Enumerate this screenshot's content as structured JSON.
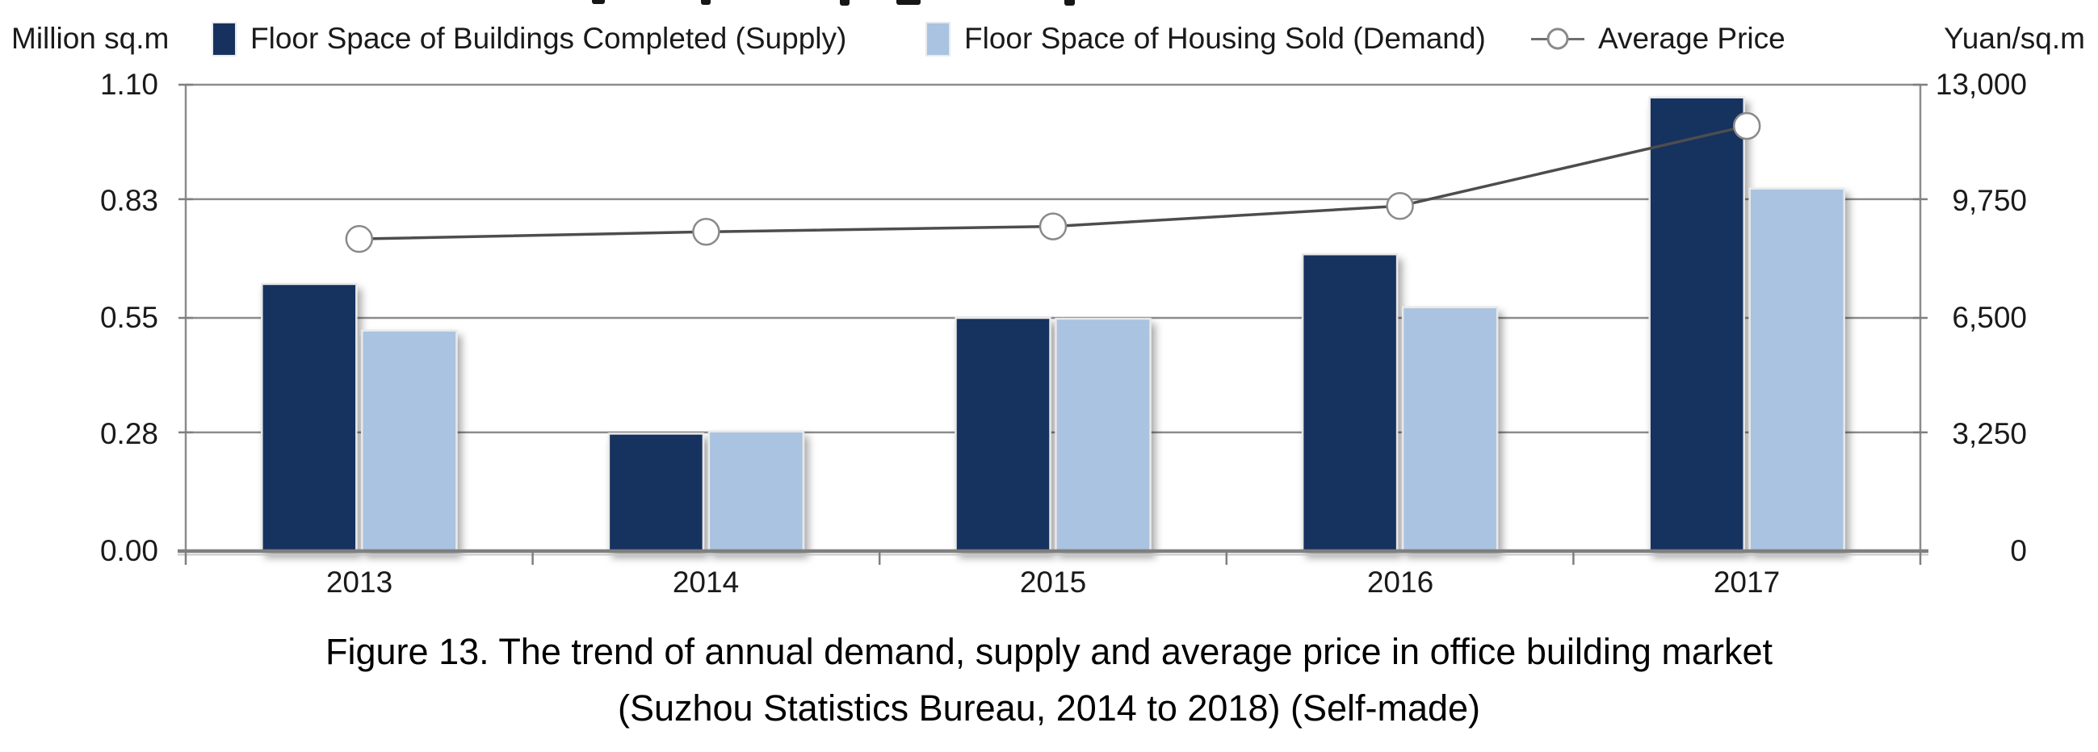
{
  "caption": {
    "line1": "Figure 13. The trend of annual demand, supply and average price in office building market",
    "line2": "(Suzhou Statistics Bureau, 2014 to 2018) (Self-made)"
  },
  "chart_data": {
    "type": "bar",
    "subtype": "combo-bar-line-dual-axis",
    "categories": [
      "2013",
      "2014",
      "2015",
      "2016",
      "2017"
    ],
    "series": [
      {
        "name": "Floor Space of Buildings Completed (Supply)",
        "type": "bar",
        "axis": "left",
        "color": "#17315e",
        "values": [
          0.63,
          0.277,
          0.55,
          0.7,
          1.07
        ]
      },
      {
        "name": "Floor Space of Housing Sold (Demand)",
        "type": "bar",
        "axis": "left",
        "color": "#a9c3e0",
        "values": [
          0.52,
          0.282,
          0.548,
          0.575,
          0.855
        ]
      },
      {
        "name": "Average Price",
        "type": "line",
        "axis": "right",
        "color": "#4d4d4d",
        "marker": "open-circle",
        "marker_fill": "#ffffff",
        "marker_stroke": "#8a8a8a",
        "values": [
          8700,
          8900,
          9050,
          9620,
          11850
        ]
      }
    ],
    "left_axis": {
      "label": "Million sq.m",
      "min": 0,
      "max": 1.1,
      "ticks": [
        {
          "value": 0.0,
          "label": "0.00"
        },
        {
          "value": 0.28,
          "label": "0.28"
        },
        {
          "value": 0.55,
          "label": "0.55"
        },
        {
          "value": 0.83,
          "label": "0.83"
        },
        {
          "value": 1.1,
          "label": "1.10"
        }
      ]
    },
    "right_axis": {
      "label": "Yuan/sq.m",
      "min": 0,
      "max": 13000,
      "ticks": [
        {
          "value": 0,
          "label": "0"
        },
        {
          "value": 3250,
          "label": "3,250"
        },
        {
          "value": 6500,
          "label": "6,500"
        },
        {
          "value": 9750,
          "label": "9,750"
        },
        {
          "value": 13000,
          "label": "13,000"
        }
      ]
    },
    "grid": true,
    "legend_position": "top",
    "grid_color": "#8c8c8c",
    "axis_color": "#7f7f7f"
  }
}
